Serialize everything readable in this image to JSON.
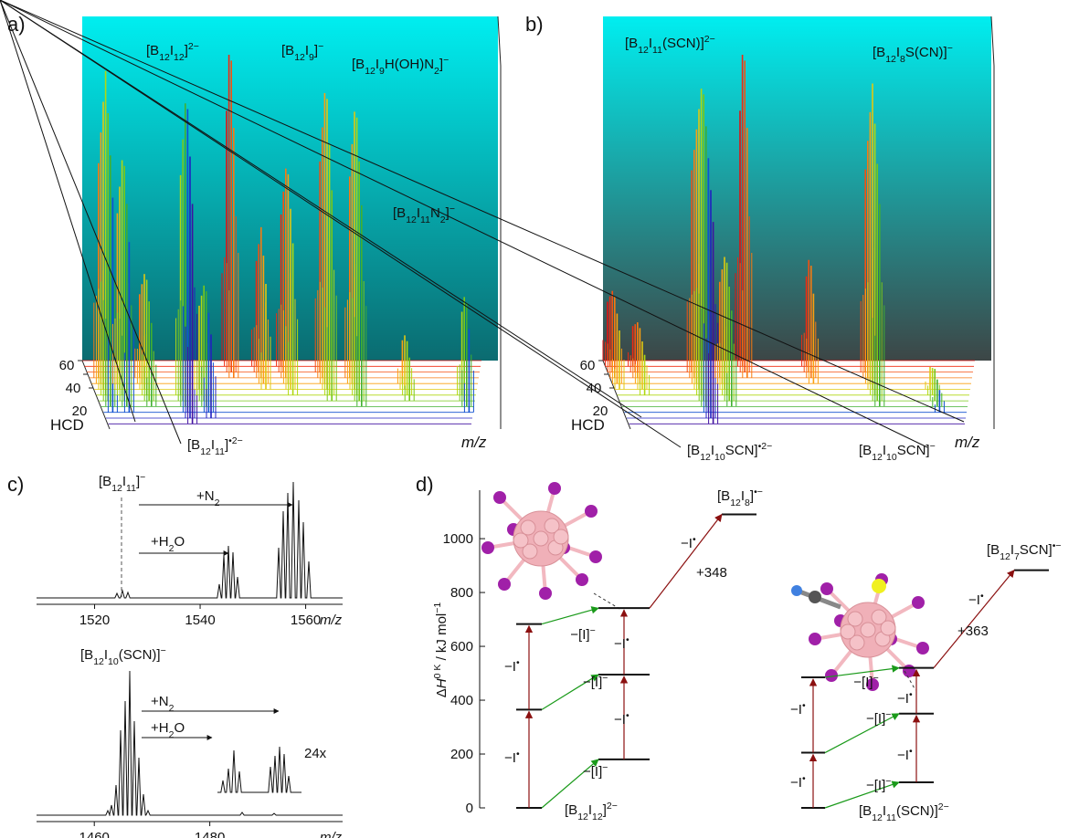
{
  "panel_a": {
    "label": "a)",
    "annotations": [
      "[B12I12]2−",
      "[B12I9]−",
      "[B12I9H(OH)N2]−",
      "[B12I11N2]−",
      "[B12I11]•2−"
    ],
    "depth_ticks": [
      60,
      40,
      20
    ],
    "depth_label": "HCD",
    "x_label": "m/z"
  },
  "panel_b": {
    "label": "b)",
    "annotations": [
      "[B12I11(SCN)]2−",
      "[B12I8S(CN)]−",
      "[B12I10SCN]•2−",
      "[B12I10SCN]−"
    ],
    "depth_ticks": [
      60,
      40,
      20
    ],
    "depth_label": "HCD",
    "x_label": "m/z"
  },
  "panel_c": {
    "label": "c)",
    "top": {
      "annotations": [
        "[B12I11]−",
        "+N2",
        "+H2O"
      ],
      "xlim": [
        1509,
        1567
      ],
      "xticks": [
        1520,
        1540,
        1560
      ],
      "x_label": "m/z"
    },
    "bottom": {
      "annotations": [
        "[B12I10(SCN)]−",
        "+N2",
        "+H2O",
        "24x"
      ],
      "xlim": [
        1450,
        1503
      ],
      "xticks": [
        1460,
        1480
      ],
      "x_label": "m/z"
    }
  },
  "panel_d": {
    "label": "d)",
    "y_label": "ΔH0 K / kJ mol−1",
    "ylim": [
      0,
      1180
    ],
    "yticks": [
      0,
      200,
      400,
      600,
      800,
      1000
    ],
    "left": {
      "columns": [
        [
          0,
          365,
          683
        ],
        [
          180,
          495,
          742
        ],
        [
          1090
        ]
      ],
      "annotations": [
        "−I•",
        "−I•",
        "−I•",
        "−I•",
        "−I•",
        "−[I]−",
        "−[I]−",
        "−[I]−",
        "+348",
        "[B12I8]•−",
        "[B12I12]2−"
      ]
    },
    "right": {
      "columns": [
        [
          0,
          205,
          485
        ],
        [
          95,
          350,
          520
        ],
        [
          883
        ]
      ],
      "annotations": [
        "−I•",
        "−I•",
        "−I•",
        "−I•",
        "−I•",
        "−[I]−",
        "−[I]−",
        "−[I]−",
        "+363",
        "[B12I7SCN]•−",
        "[B12I11(SCN)]2−"
      ]
    }
  }
}
